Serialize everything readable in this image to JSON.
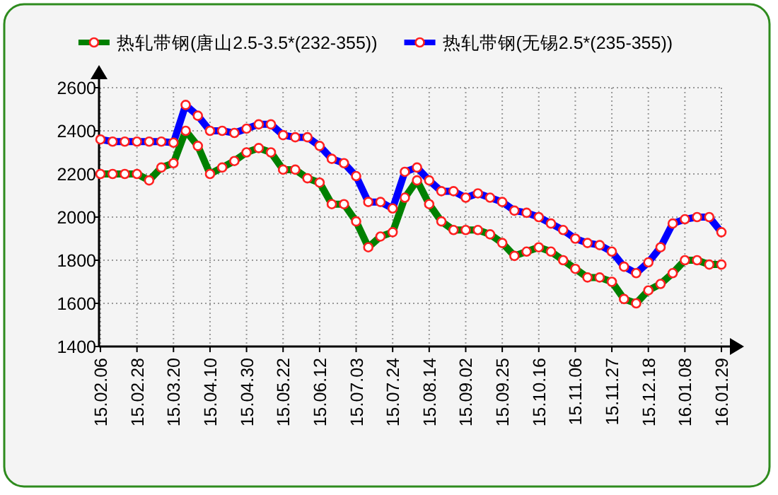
{
  "chart_data": {
    "type": "line",
    "categories": [
      "15.02.06",
      null,
      null,
      "15.02.28",
      null,
      null,
      "15.03.20",
      null,
      null,
      "15.04.10",
      null,
      null,
      "15.04.30",
      null,
      null,
      "15.05.22",
      null,
      null,
      "15.06.12",
      null,
      null,
      "15.07.03",
      null,
      null,
      "15.07.24",
      null,
      null,
      "15.08.14",
      null,
      null,
      "15.09.02",
      null,
      null,
      "15.09.25",
      null,
      null,
      "15.10.16",
      null,
      null,
      "15.11.06",
      null,
      null,
      "15.11.27",
      null,
      null,
      "15.12.18",
      null,
      null,
      "16.01.08",
      null,
      null,
      "16.01.29"
    ],
    "series": [
      {
        "name": "热轧带钢(唐山2.5-3.5*(232-355))",
        "color": "#008000",
        "values": [
          2200,
          2200,
          2200,
          2200,
          2170,
          2230,
          2250,
          2400,
          2330,
          2200,
          2230,
          2260,
          2300,
          2320,
          2300,
          2220,
          2220,
          2180,
          2160,
          2060,
          2060,
          1980,
          1860,
          1910,
          1930,
          2090,
          2170,
          2060,
          1980,
          1940,
          1940,
          1940,
          1920,
          1880,
          1820,
          1840,
          1860,
          1840,
          1800,
          1760,
          1720,
          1720,
          1700,
          1620,
          1600,
          1660,
          1690,
          1740,
          1800,
          1800,
          1780,
          1780
        ]
      },
      {
        "name": "热轧带钢(无锡2.5*(235-355))",
        "color": "#0000ff",
        "values": [
          2360,
          2350,
          2350,
          2350,
          2350,
          2350,
          2345,
          2520,
          2470,
          2400,
          2400,
          2390,
          2410,
          2430,
          2430,
          2380,
          2370,
          2370,
          2330,
          2270,
          2250,
          2190,
          2070,
          2070,
          2040,
          2210,
          2230,
          2170,
          2120,
          2120,
          2090,
          2110,
          2090,
          2070,
          2030,
          2020,
          2000,
          1970,
          1940,
          1900,
          1880,
          1870,
          1840,
          1770,
          1740,
          1790,
          1860,
          1970,
          1990,
          2000,
          2000,
          1930
        ]
      }
    ],
    "ylim": [
      1400,
      2600
    ],
    "yticks": [
      1400,
      1600,
      1800,
      2000,
      2200,
      2400,
      2600
    ],
    "grid": true,
    "legend": "top",
    "marker": "circle",
    "line_style": "solid"
  }
}
